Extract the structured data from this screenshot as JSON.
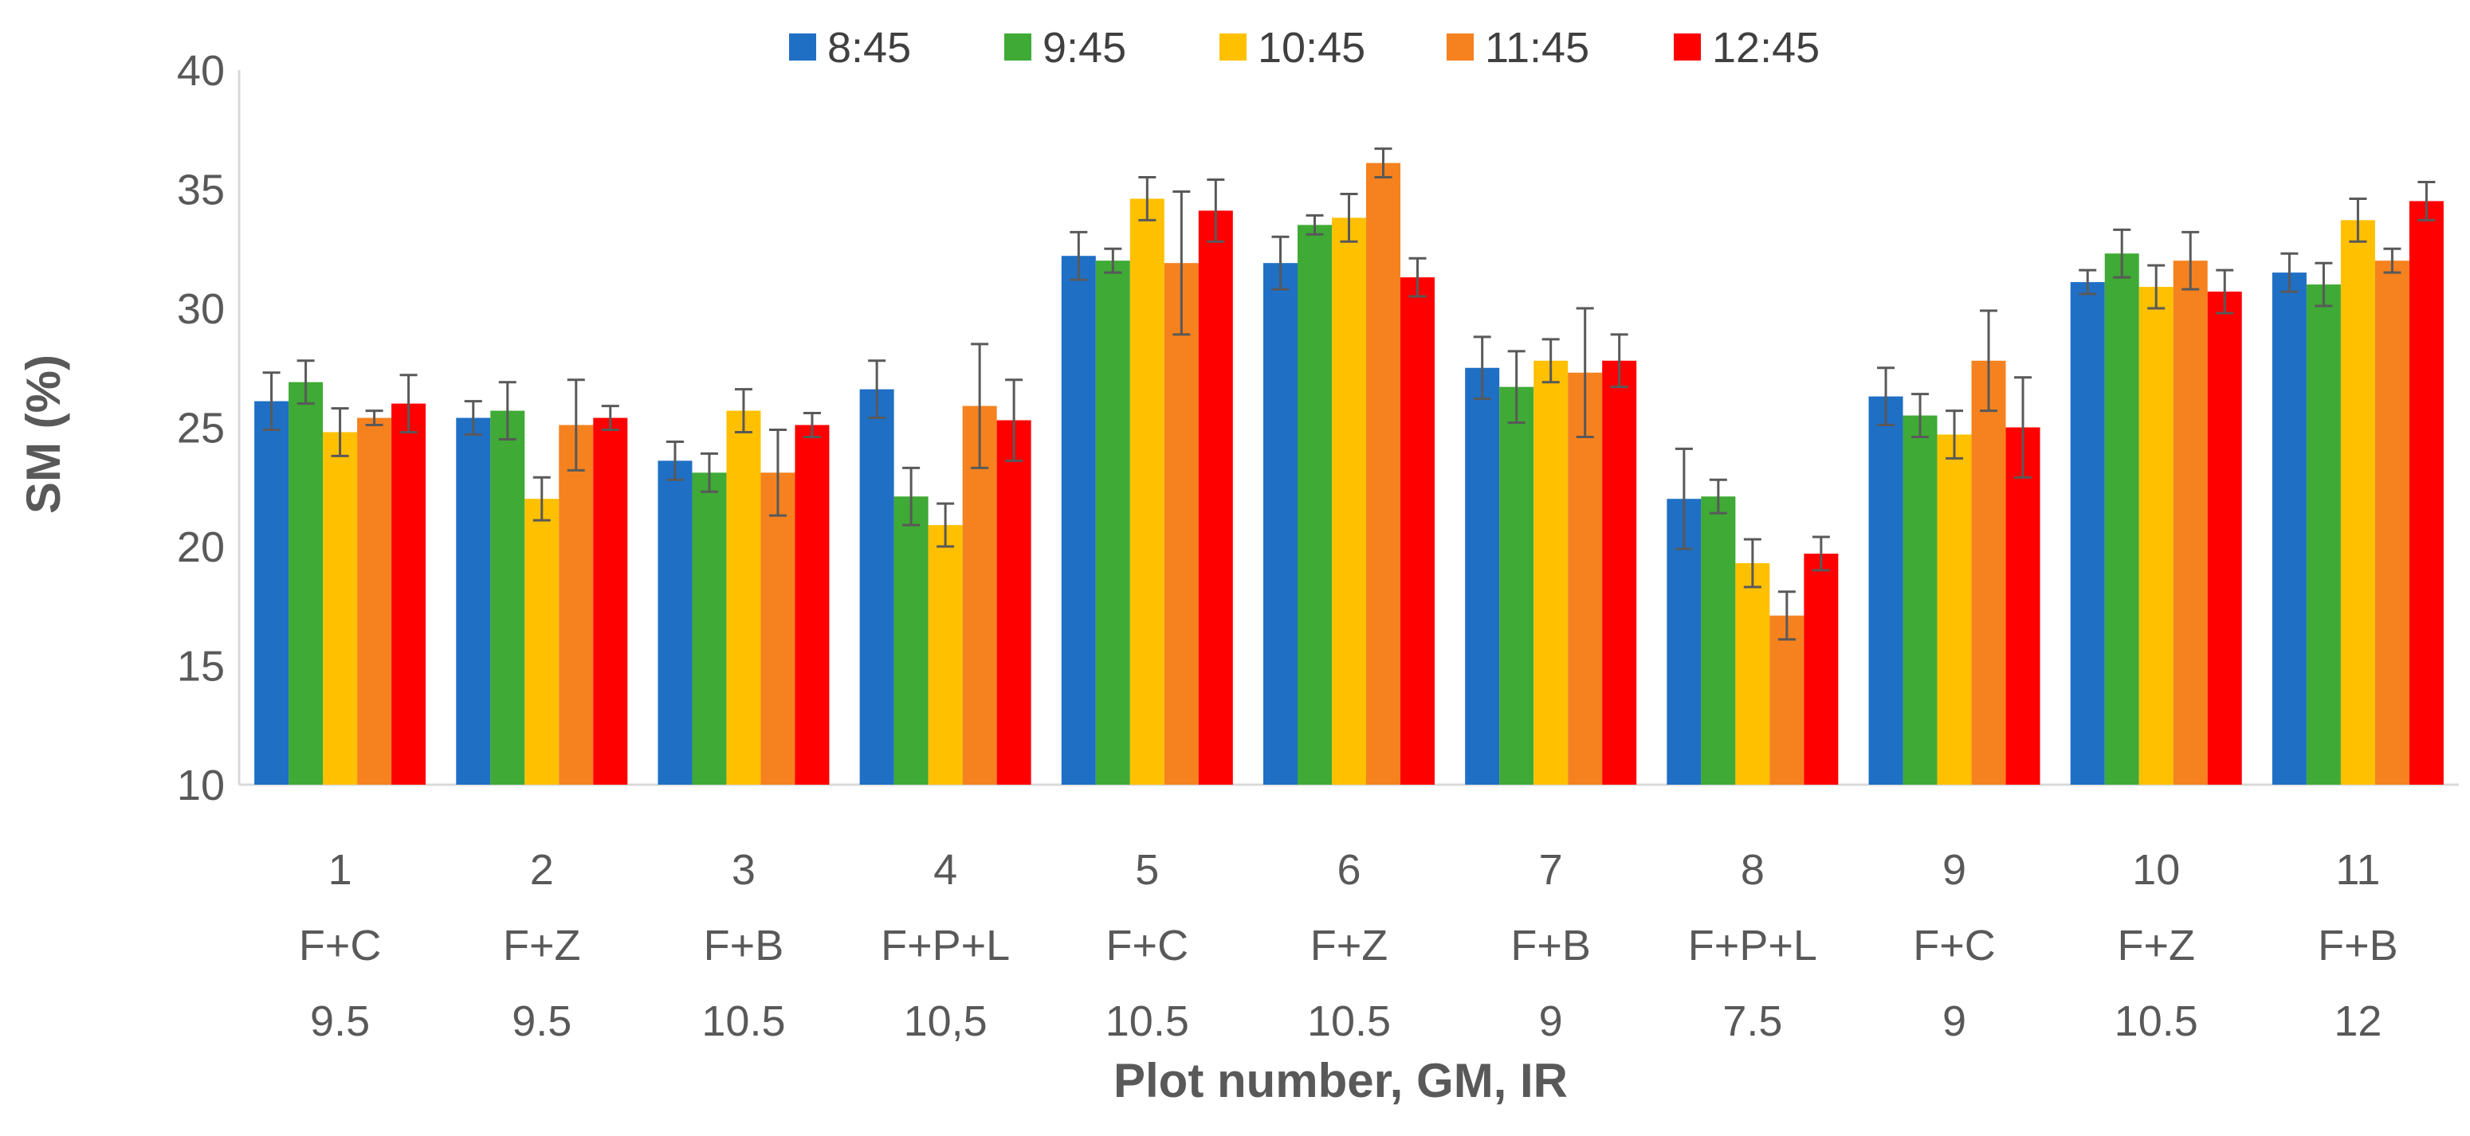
{
  "chart_data": {
    "type": "bar",
    "title": "",
    "xlabel": "Plot number, GM, IR",
    "ylabel": "SM (%)",
    "ylim": [
      10,
      40
    ],
    "yticks": [
      "10",
      "15",
      "20",
      "25",
      "30",
      "35",
      "40"
    ],
    "legend_position": "top",
    "categories": [
      {
        "plot": "1",
        "gm": "F+C",
        "ir": "9.5"
      },
      {
        "plot": "2",
        "gm": "F+Z",
        "ir": "9.5"
      },
      {
        "plot": "3",
        "gm": "F+B",
        "ir": "10.5"
      },
      {
        "plot": "4",
        "gm": "F+P+L",
        "ir": "10,5"
      },
      {
        "plot": "5",
        "gm": "F+C",
        "ir": "10.5"
      },
      {
        "plot": "6",
        "gm": "F+Z",
        "ir": "10.5"
      },
      {
        "plot": "7",
        "gm": "F+B",
        "ir": "9"
      },
      {
        "plot": "8",
        "gm": "F+P+L",
        "ir": "7.5"
      },
      {
        "plot": "9",
        "gm": "F+C",
        "ir": "9"
      },
      {
        "plot": "10",
        "gm": "F+Z",
        "ir": "10.5"
      },
      {
        "plot": "11",
        "gm": "F+B",
        "ir": "12"
      }
    ],
    "series": [
      {
        "name": "8:45",
        "color": "#1F6FC5",
        "values": [
          26.1,
          25.4,
          23.6,
          26.6,
          32.2,
          31.9,
          27.5,
          22.0,
          26.3,
          31.1,
          31.5
        ],
        "errors": [
          1.2,
          0.7,
          0.8,
          1.2,
          1.0,
          1.1,
          1.3,
          2.1,
          1.2,
          0.5,
          0.8
        ]
      },
      {
        "name": "9:45",
        "color": "#3FAA35",
        "values": [
          26.9,
          25.7,
          23.1,
          22.1,
          32.0,
          33.5,
          26.7,
          22.1,
          25.5,
          32.3,
          31.0
        ],
        "errors": [
          0.9,
          1.2,
          0.8,
          1.2,
          0.5,
          0.4,
          1.5,
          0.7,
          0.9,
          1.0,
          0.9
        ]
      },
      {
        "name": "10:45",
        "color": "#FFC000",
        "values": [
          24.8,
          22.0,
          25.7,
          20.9,
          34.6,
          33.8,
          27.8,
          19.3,
          24.7,
          30.9,
          33.7
        ],
        "errors": [
          1.0,
          0.9,
          0.9,
          0.9,
          0.9,
          1.0,
          0.9,
          1.0,
          1.0,
          0.9,
          0.9
        ]
      },
      {
        "name": "11:45",
        "color": "#F5821F",
        "values": [
          25.4,
          25.1,
          23.1,
          25.9,
          31.9,
          36.1,
          27.3,
          17.1,
          27.8,
          32.0,
          32.0
        ],
        "errors": [
          0.3,
          1.9,
          1.8,
          2.6,
          3.0,
          0.6,
          2.7,
          1.0,
          2.1,
          1.2,
          0.5
        ]
      },
      {
        "name": "12:45",
        "color": "#FF0000",
        "values": [
          26.0,
          25.4,
          25.1,
          25.3,
          34.1,
          31.3,
          27.8,
          19.7,
          25.0,
          30.7,
          34.5
        ],
        "errors": [
          1.2,
          0.5,
          0.5,
          1.7,
          1.3,
          0.8,
          1.1,
          0.7,
          2.1,
          0.9,
          0.8
        ]
      }
    ]
  }
}
